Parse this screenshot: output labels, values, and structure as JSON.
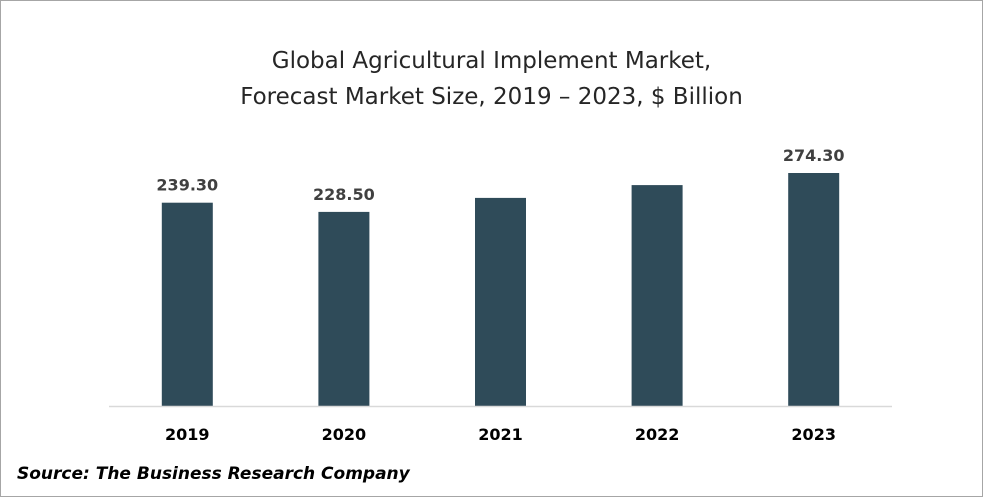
{
  "chart_data": {
    "type": "bar",
    "title": "Global Agricultural Implement Market,",
    "subtitle": "Forecast Market Size, 2019 – 2023, $ Billion",
    "categories": [
      "2019",
      "2020",
      "2021",
      "2022",
      "2023"
    ],
    "values": [
      239.3,
      228.5,
      245.0,
      260.0,
      274.3
    ],
    "data_labels": [
      "239.30",
      "228.50",
      "",
      "",
      "274.30"
    ],
    "xlabel": "",
    "ylabel": "",
    "ylim": [
      0,
      280
    ],
    "grid": false,
    "bar_color": "#2f4b59",
    "axis_color": "#d9d9d9"
  },
  "source": "Source: The Business Research Company"
}
